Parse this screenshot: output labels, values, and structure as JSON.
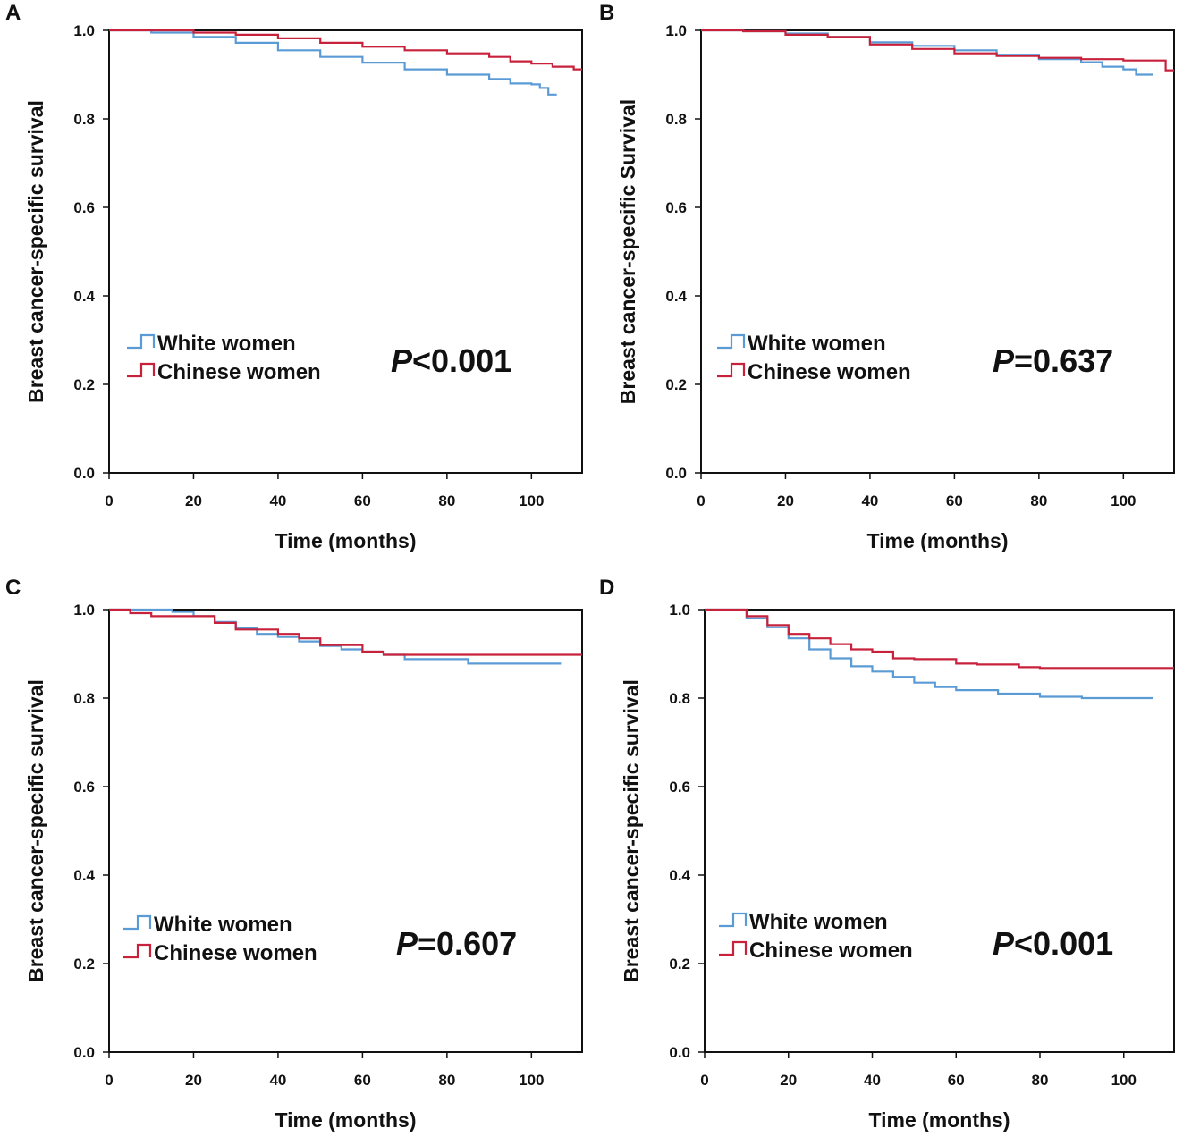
{
  "figure": {
    "series_colors": {
      "white": "#5b9bd5",
      "chinese": "#c8213b"
    },
    "axis_color": "#111111"
  },
  "chart_data": [
    {
      "type": "line",
      "step": true,
      "panel_label": "A",
      "title": "",
      "xlabel": "Time (months)",
      "ylabel": "Breast cancer-specific survival",
      "xlim": [
        0,
        112
      ],
      "ylim": [
        0,
        1
      ],
      "xticks": [
        "0",
        "20",
        "40",
        "60",
        "80",
        "100"
      ],
      "yticks": [
        "0.0",
        "0.2",
        "0.4",
        "0.6",
        "0.8",
        "1.0"
      ],
      "legend_position": "bottom-left",
      "annotation": {
        "italic": "P",
        "rest": "<0.001"
      },
      "series": [
        {
          "name": "White women",
          "color": "#5b9bd5",
          "x": [
            0,
            10,
            20,
            30,
            40,
            50,
            60,
            70,
            80,
            90,
            95,
            100,
            102,
            104,
            106
          ],
          "y": [
            1.0,
            0.995,
            0.985,
            0.972,
            0.955,
            0.94,
            0.927,
            0.912,
            0.9,
            0.89,
            0.88,
            0.878,
            0.87,
            0.855,
            0.855
          ]
        },
        {
          "name": "Chinese women",
          "color": "#c8213b",
          "x": [
            0,
            10,
            20,
            30,
            40,
            50,
            60,
            70,
            80,
            90,
            95,
            100,
            105,
            110,
            112
          ],
          "y": [
            1.0,
            1.0,
            0.995,
            0.99,
            0.982,
            0.972,
            0.963,
            0.955,
            0.948,
            0.94,
            0.93,
            0.925,
            0.918,
            0.912,
            0.912
          ]
        }
      ]
    },
    {
      "type": "line",
      "step": true,
      "panel_label": "B",
      "title": "",
      "xlabel": "Time (months)",
      "ylabel": "Breast cancer-specific Survival",
      "xlim": [
        0,
        112
      ],
      "ylim": [
        0,
        1
      ],
      "xticks": [
        "0",
        "20",
        "40",
        "60",
        "80",
        "100"
      ],
      "yticks": [
        "0.0",
        "0.2",
        "0.4",
        "0.6",
        "0.8",
        "1.0"
      ],
      "legend_position": "bottom-left",
      "annotation": {
        "italic": "P",
        "rest": "=0.637"
      },
      "series": [
        {
          "name": "White women",
          "color": "#5b9bd5",
          "x": [
            0,
            10,
            20,
            30,
            40,
            50,
            60,
            70,
            80,
            90,
            95,
            100,
            103,
            107
          ],
          "y": [
            1.0,
            0.998,
            0.993,
            0.985,
            0.973,
            0.965,
            0.955,
            0.945,
            0.935,
            0.928,
            0.918,
            0.912,
            0.9,
            0.9
          ]
        },
        {
          "name": "Chinese women",
          "color": "#c8213b",
          "x": [
            0,
            10,
            20,
            30,
            40,
            50,
            60,
            70,
            80,
            90,
            100,
            109,
            110,
            112
          ],
          "y": [
            1.0,
            0.998,
            0.99,
            0.985,
            0.968,
            0.958,
            0.948,
            0.942,
            0.938,
            0.935,
            0.932,
            0.932,
            0.91,
            0.91
          ]
        }
      ]
    },
    {
      "type": "line",
      "step": true,
      "panel_label": "C",
      "title": "",
      "xlabel": "Time (months)",
      "ylabel": "Breast cancer-specific survival",
      "xlim": [
        0,
        112
      ],
      "ylim": [
        0,
        1
      ],
      "xticks": [
        "0",
        "20",
        "40",
        "60",
        "80",
        "100"
      ],
      "yticks": [
        "0.0",
        "0.2",
        "0.4",
        "0.6",
        "0.8",
        "1.0"
      ],
      "legend_position": "bottom-left",
      "annotation": {
        "italic": "P",
        "rest": "=0.607"
      },
      "series": [
        {
          "name": "White women",
          "color": "#5b9bd5",
          "x": [
            0,
            15,
            20,
            25,
            30,
            35,
            40,
            45,
            50,
            55,
            60,
            65,
            70,
            85,
            107
          ],
          "y": [
            1.0,
            0.995,
            0.985,
            0.972,
            0.958,
            0.945,
            0.938,
            0.928,
            0.918,
            0.91,
            0.905,
            0.898,
            0.888,
            0.878,
            0.878
          ]
        },
        {
          "name": "Chinese women",
          "color": "#c8213b",
          "x": [
            0,
            5,
            10,
            20,
            25,
            30,
            40,
            45,
            50,
            55,
            60,
            65,
            112
          ],
          "y": [
            1.0,
            0.992,
            0.985,
            0.985,
            0.97,
            0.955,
            0.945,
            0.935,
            0.92,
            0.92,
            0.905,
            0.898,
            0.898
          ]
        }
      ]
    },
    {
      "type": "line",
      "step": true,
      "panel_label": "D",
      "title": "",
      "xlabel": "Time (months)",
      "ylabel": "Breast cancer-specific survival",
      "xlim": [
        0,
        112
      ],
      "ylim": [
        0,
        1
      ],
      "xticks": [
        "0",
        "20",
        "40",
        "60",
        "80",
        "100"
      ],
      "yticks": [
        "0.0",
        "0.2",
        "0.4",
        "0.6",
        "0.8",
        "1.0"
      ],
      "legend_position": "bottom-left",
      "annotation": {
        "italic": "P",
        "rest": "<0.001"
      },
      "series": [
        {
          "name": "White women",
          "color": "#5b9bd5",
          "x": [
            0,
            10,
            15,
            20,
            25,
            30,
            35,
            40,
            45,
            50,
            55,
            60,
            70,
            80,
            90,
            107
          ],
          "y": [
            1.0,
            0.98,
            0.96,
            0.935,
            0.91,
            0.89,
            0.872,
            0.86,
            0.848,
            0.835,
            0.825,
            0.818,
            0.81,
            0.803,
            0.8,
            0.8
          ]
        },
        {
          "name": "Chinese women",
          "color": "#c8213b",
          "x": [
            0,
            10,
            15,
            20,
            25,
            30,
            35,
            40,
            45,
            50,
            60,
            65,
            75,
            80,
            112
          ],
          "y": [
            1.0,
            0.985,
            0.965,
            0.945,
            0.935,
            0.922,
            0.91,
            0.905,
            0.89,
            0.888,
            0.878,
            0.876,
            0.87,
            0.868,
            0.868
          ]
        }
      ]
    }
  ]
}
